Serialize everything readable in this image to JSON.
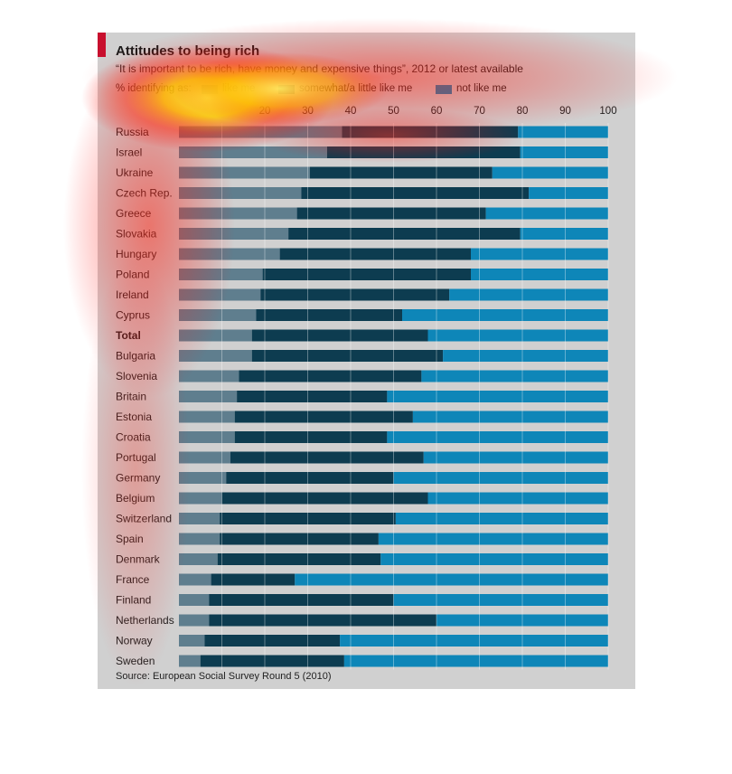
{
  "chart_data": {
    "type": "bar",
    "stacked": true,
    "orientation": "horizontal",
    "title": "Attitudes to being rich",
    "subtitle": "“It is important to be rich, have money and expensive things”, 2012 or latest available",
    "legend_title": "% identifying as:",
    "source": "Source: European Social Survey Round 5 (2010)",
    "xlim": [
      0,
      100
    ],
    "xticks": [
      0,
      10,
      20,
      30,
      40,
      50,
      60,
      70,
      80,
      90,
      100
    ],
    "xtick_labels": [
      "",
      "",
      "20",
      "30",
      "40",
      "50",
      "60",
      "70",
      "80",
      "90",
      "100"
    ],
    "grid": true,
    "categories": [
      "Russia",
      "Israel",
      "Ukraine",
      "Czech Rep.",
      "Greece",
      "Slovakia",
      "Hungary",
      "Poland",
      "Ireland",
      "Cyprus",
      "Total",
      "Bulgaria",
      "Slovenia",
      "Britain",
      "Estonia",
      "Croatia",
      "Portugal",
      "Germany",
      "Belgium",
      "Switzerland",
      "Spain",
      "Denmark",
      "France",
      "Finland",
      "Netherlands",
      "Norway",
      "Sweden"
    ],
    "bold_categories": [
      "Total"
    ],
    "series": [
      {
        "name": "like me",
        "color": "#5f7e8e",
        "values": [
          38,
          34.5,
          30.5,
          28.5,
          27.5,
          25.5,
          23.5,
          19.5,
          19,
          18,
          17,
          17,
          14,
          13.5,
          13,
          13,
          12,
          11,
          10,
          9.5,
          9.5,
          9,
          7.5,
          7,
          7,
          6,
          5
        ]
      },
      {
        "name": "somewhat/a little like me",
        "color": "#0d3c50",
        "values": [
          41,
          45,
          42.5,
          53,
          44,
          54,
          44.5,
          48.5,
          44,
          34,
          41,
          44.5,
          42.5,
          35,
          41.5,
          35.5,
          45,
          39,
          48,
          41,
          37,
          38,
          19.5,
          43,
          53,
          31.5,
          33.5
        ]
      },
      {
        "name": "not like me",
        "color": "#0e86b8",
        "values": [
          21,
          20.5,
          27,
          18.5,
          28.5,
          20.5,
          32,
          32,
          37,
          48,
          42,
          38.5,
          43.5,
          51.5,
          45.5,
          51.5,
          43,
          50,
          42,
          49.5,
          53.5,
          53,
          73,
          50,
          40,
          62.5,
          61.5
        ]
      }
    ]
  }
}
